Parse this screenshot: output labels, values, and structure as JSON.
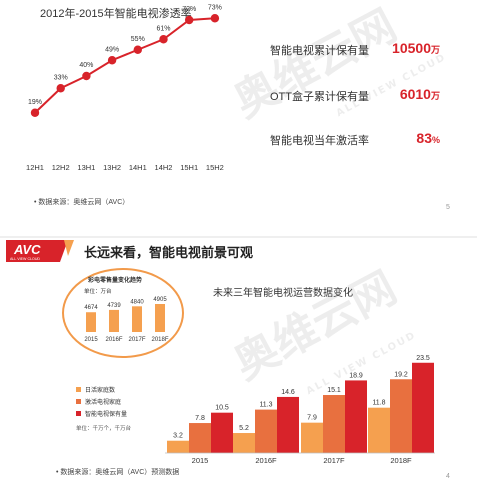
{
  "slide1": {
    "line_chart": {
      "type": "line",
      "title": "2012年-2015年智能电视渗透率",
      "categories": [
        "12H1",
        "12H2",
        "13H1",
        "13H2",
        "14H1",
        "14H2",
        "15H1",
        "15H2"
      ],
      "values": [
        19,
        33,
        40,
        49,
        55,
        61,
        72,
        73
      ],
      "value_labels": [
        "19%",
        "33%",
        "40%",
        "49%",
        "55%",
        "61%",
        "72%",
        "73%"
      ],
      "ylim": [
        0,
        80
      ],
      "color": "#d8232a",
      "grid": false
    },
    "stats": [
      {
        "label": "智能电视累计保有量",
        "value": "10500",
        "unit": "万"
      },
      {
        "label": "OTT盒子累计保有量",
        "value": "6010",
        "unit": "万"
      },
      {
        "label": "智能电视当年激活率",
        "value": "83",
        "unit": "%"
      }
    ],
    "source": "数据来源：奥维云网（AVC）",
    "page_number": "5",
    "watermark": "奥维云网",
    "watermark_sub": "ALL VIEW CLOUD"
  },
  "slide2": {
    "logo_text": "AVC",
    "logo_sub": "ALL VIEW CLOUD",
    "title": "长远来看，智能电视前景可观",
    "subtitle": "未来三年智能电视运营数据变化",
    "inset_chart": {
      "type": "bar",
      "title": "彩电零售量变化趋势",
      "unit": "单位：万台",
      "categories": [
        "2015",
        "2016F",
        "2017F",
        "2018F"
      ],
      "values": [
        4674,
        4739,
        4840,
        4905
      ],
      "value_labels": [
        "4674",
        "4739",
        "4840",
        "4905"
      ],
      "color": "#f5a04f"
    },
    "main_chart": {
      "type": "bar",
      "categories": [
        "2015",
        "2016F",
        "2017F",
        "2018F"
      ],
      "series": [
        {
          "name": "日活家庭数",
          "values": [
            3.2,
            5.2,
            7.9,
            11.8
          ],
          "labels": [
            "3.2",
            "5.2",
            "7.9",
            "11.8"
          ],
          "color": "#f5a04f"
        },
        {
          "name": "激活电视家庭",
          "values": [
            7.8,
            11.3,
            15.1,
            19.2
          ],
          "labels": [
            "7.8",
            "11.3",
            "15.1",
            "19.2"
          ],
          "color": "#e8703f"
        },
        {
          "name": "智能电视保有量",
          "values": [
            10.5,
            14.6,
            18.9,
            23.5
          ],
          "labels": [
            "10.5",
            "14.6",
            "18.9",
            "23.5"
          ],
          "color": "#d8232a"
        }
      ],
      "unit": "单位：千万个，千万台",
      "ylim": [
        0,
        25
      ]
    },
    "source": "数据来源：奥维云网（AVC）预测数据",
    "page_number": "4",
    "watermark": "奥维云网",
    "watermark_sub": "ALL VIEW CLOUD"
  }
}
